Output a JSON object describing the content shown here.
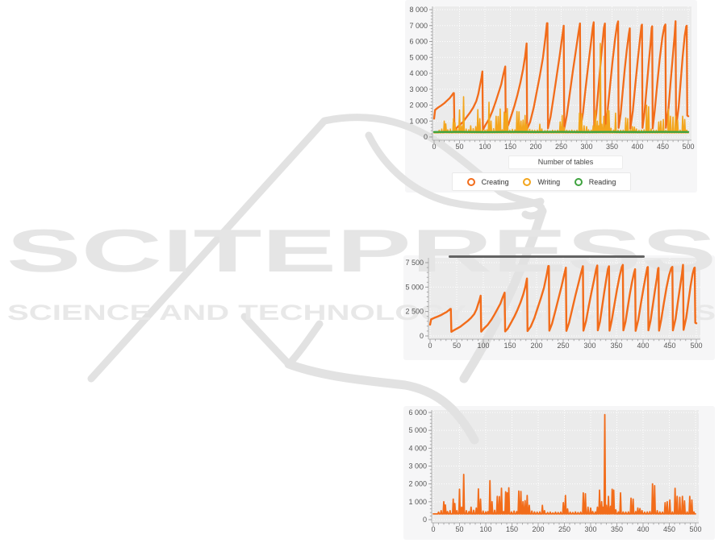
{
  "page": {
    "background": "#ffffff"
  },
  "watermark": {
    "big_text": "SCITEPRESS",
    "small_text": "SCIENCE AND TECHNOLOGY PUBLICATIONS",
    "big_text_color": "#e5e5e5",
    "small_text_color": "#e8e8e8",
    "logo_color": "#e2e2e2"
  },
  "divider_bar": {
    "color": "#636363"
  },
  "style": {
    "plot_bg": "#ebebeb",
    "card_bg": "#f6f6f7",
    "grid_color": "#ffffff",
    "axis_color": "#b3b3b3",
    "tick_color": "#999999",
    "tick_text_color": "#555555"
  },
  "series_data": {
    "creating": [
      [
        0,
        1150
      ],
      [
        2,
        1700
      ],
      [
        8,
        1850
      ],
      [
        14,
        1980
      ],
      [
        20,
        2120
      ],
      [
        26,
        2300
      ],
      [
        31,
        2450
      ],
      [
        35,
        2620
      ],
      [
        38,
        2760
      ],
      [
        39,
        2760
      ],
      [
        40,
        420
      ],
      [
        44,
        560
      ],
      [
        50,
        740
      ],
      [
        57,
        950
      ],
      [
        64,
        1250
      ],
      [
        71,
        1550
      ],
      [
        77,
        1850
      ],
      [
        83,
        2250
      ],
      [
        87,
        2700
      ],
      [
        90,
        3200
      ],
      [
        93,
        3700
      ],
      [
        95,
        4120
      ],
      [
        96,
        440
      ],
      [
        101,
        750
      ],
      [
        108,
        1120
      ],
      [
        115,
        1650
      ],
      [
        121,
        2200
      ],
      [
        127,
        2800
      ],
      [
        132,
        3300
      ],
      [
        136,
        3900
      ],
      [
        139,
        4300
      ],
      [
        140,
        4430
      ],
      [
        141,
        460
      ],
      [
        146,
        760
      ],
      [
        152,
        1350
      ],
      [
        158,
        1950
      ],
      [
        164,
        2650
      ],
      [
        170,
        3450
      ],
      [
        175,
        4250
      ],
      [
        179,
        5050
      ],
      [
        182,
        5880
      ],
      [
        183,
        500
      ],
      [
        189,
        950
      ],
      [
        196,
        1850
      ],
      [
        202,
        2850
      ],
      [
        208,
        3850
      ],
      [
        214,
        4950
      ],
      [
        219,
        6250
      ],
      [
        222,
        7150
      ],
      [
        223,
        7150
      ],
      [
        224,
        540
      ],
      [
        229,
        1250
      ],
      [
        235,
        2500
      ],
      [
        241,
        3800
      ],
      [
        247,
        5100
      ],
      [
        252,
        6300
      ],
      [
        255,
        6990
      ],
      [
        256,
        520
      ],
      [
        261,
        1350
      ],
      [
        267,
        2750
      ],
      [
        273,
        4150
      ],
      [
        279,
        5450
      ],
      [
        284,
        6550
      ],
      [
        287,
        7140
      ],
      [
        288,
        540
      ],
      [
        293,
        1550
      ],
      [
        298,
        3050
      ],
      [
        303,
        4450
      ],
      [
        308,
        5750
      ],
      [
        312,
        6850
      ],
      [
        314,
        7210
      ],
      [
        315,
        570
      ],
      [
        319,
        1450
      ],
      [
        323,
        2950
      ],
      [
        327,
        4450
      ],
      [
        331,
        5850
      ],
      [
        334,
        6850
      ],
      [
        336,
        7130
      ],
      [
        337,
        540
      ],
      [
        341,
        1550
      ],
      [
        346,
        3150
      ],
      [
        351,
        4750
      ],
      [
        356,
        6150
      ],
      [
        360,
        7050
      ],
      [
        362,
        7270
      ],
      [
        363,
        570
      ],
      [
        367,
        1450
      ],
      [
        371,
        2850
      ],
      [
        375,
        4250
      ],
      [
        379,
        5450
      ],
      [
        383,
        6450
      ],
      [
        385,
        6830
      ],
      [
        386,
        520
      ],
      [
        391,
        1650
      ],
      [
        396,
        3350
      ],
      [
        401,
        4950
      ],
      [
        405,
        6150
      ],
      [
        408,
        7000
      ],
      [
        409,
        7060
      ],
      [
        410,
        570
      ],
      [
        414,
        1550
      ],
      [
        418,
        3050
      ],
      [
        422,
        4550
      ],
      [
        426,
        5950
      ],
      [
        428,
        6860
      ],
      [
        429,
        6960
      ],
      [
        430,
        540
      ],
      [
        434,
        1650
      ],
      [
        439,
        3350
      ],
      [
        444,
        4950
      ],
      [
        449,
        6250
      ],
      [
        453,
        6950
      ],
      [
        455,
        7070
      ],
      [
        456,
        570
      ],
      [
        461,
        1750
      ],
      [
        465,
        3350
      ],
      [
        469,
        4850
      ],
      [
        473,
        6350
      ],
      [
        475,
        7280
      ],
      [
        476,
        620
      ],
      [
        481,
        1850
      ],
      [
        485,
        3450
      ],
      [
        489,
        5050
      ],
      [
        493,
        6350
      ],
      [
        496,
        6950
      ],
      [
        497,
        6990
      ],
      [
        498,
        1350
      ],
      [
        500,
        1300
      ]
    ],
    "writing_spikes": [
      [
        10,
        420
      ],
      [
        15,
        500
      ],
      [
        20,
        1000
      ],
      [
        23,
        820
      ],
      [
        27,
        450
      ],
      [
        32,
        500
      ],
      [
        38,
        1150
      ],
      [
        41,
        900
      ],
      [
        45,
        500
      ],
      [
        50,
        1700
      ],
      [
        54,
        700
      ],
      [
        58,
        2530
      ],
      [
        63,
        500
      ],
      [
        68,
        450
      ],
      [
        72,
        700
      ],
      [
        77,
        520
      ],
      [
        82,
        650
      ],
      [
        86,
        1720
      ],
      [
        90,
        1150
      ],
      [
        95,
        480
      ],
      [
        100,
        430
      ],
      [
        104,
        450
      ],
      [
        108,
        2180
      ],
      [
        112,
        1000
      ],
      [
        117,
        520
      ],
      [
        122,
        1300
      ],
      [
        126,
        1290
      ],
      [
        130,
        1760
      ],
      [
        134,
        450
      ],
      [
        138,
        1560
      ],
      [
        141,
        1500
      ],
      [
        144,
        1780
      ],
      [
        149,
        430
      ],
      [
        154,
        480
      ],
      [
        159,
        450
      ],
      [
        163,
        1600
      ],
      [
        167,
        1580
      ],
      [
        171,
        1000
      ],
      [
        175,
        1060
      ],
      [
        179,
        1350
      ],
      [
        183,
        800
      ],
      [
        188,
        480
      ],
      [
        193,
        430
      ],
      [
        198,
        420
      ],
      [
        203,
        430
      ],
      [
        208,
        800
      ],
      [
        212,
        500
      ],
      [
        218,
        400
      ],
      [
        223,
        420
      ],
      [
        228,
        380
      ],
      [
        233,
        420
      ],
      [
        238,
        400
      ],
      [
        243,
        420
      ],
      [
        248,
        950
      ],
      [
        252,
        1350
      ],
      [
        256,
        600
      ],
      [
        261,
        420
      ],
      [
        266,
        400
      ],
      [
        271,
        430
      ],
      [
        276,
        400
      ],
      [
        281,
        420
      ],
      [
        286,
        1500
      ],
      [
        290,
        1450
      ],
      [
        295,
        700
      ],
      [
        300,
        650
      ],
      [
        304,
        450
      ],
      [
        309,
        430
      ],
      [
        313,
        700
      ],
      [
        317,
        1650
      ],
      [
        321,
        1000
      ],
      [
        324,
        700
      ],
      [
        327,
        5880
      ],
      [
        330,
        800
      ],
      [
        334,
        1300
      ],
      [
        338,
        750
      ],
      [
        341,
        1700
      ],
      [
        344,
        1650
      ],
      [
        348,
        550
      ],
      [
        353,
        430
      ],
      [
        357,
        1500
      ],
      [
        362,
        430
      ],
      [
        367,
        420
      ],
      [
        372,
        430
      ],
      [
        377,
        1200
      ],
      [
        381,
        1150
      ],
      [
        386,
        450
      ],
      [
        390,
        650
      ],
      [
        394,
        620
      ],
      [
        398,
        500
      ],
      [
        403,
        420
      ],
      [
        408,
        430
      ],
      [
        413,
        450
      ],
      [
        418,
        2000
      ],
      [
        422,
        1900
      ],
      [
        427,
        500
      ],
      [
        432,
        430
      ],
      [
        437,
        420
      ],
      [
        442,
        950
      ],
      [
        446,
        1000
      ],
      [
        451,
        1100
      ],
      [
        456,
        430
      ],
      [
        461,
        1750
      ],
      [
        465,
        1300
      ],
      [
        470,
        1250
      ],
      [
        475,
        1300
      ],
      [
        479,
        1050
      ],
      [
        484,
        430
      ],
      [
        489,
        1300
      ],
      [
        493,
        1100
      ],
      [
        497,
        430
      ]
    ],
    "reading": [
      [
        0,
        310
      ],
      [
        50,
        318
      ],
      [
        100,
        308
      ],
      [
        150,
        320
      ],
      [
        200,
        312
      ],
      [
        250,
        318
      ],
      [
        300,
        310
      ],
      [
        350,
        318
      ],
      [
        400,
        310
      ],
      [
        450,
        318
      ],
      [
        500,
        314
      ]
    ]
  },
  "chart_data": [
    {
      "type": "line",
      "title": "",
      "xlabel": "Number of tables",
      "ylabel": "",
      "xlim": [
        0,
        500
      ],
      "ylim": [
        0,
        8000
      ],
      "grid": true,
      "xticks": [
        0,
        50,
        100,
        150,
        200,
        250,
        300,
        350,
        400,
        450,
        500
      ],
      "yticks": [
        {
          "value": 0,
          "label": "0"
        },
        {
          "value": 1000,
          "label": "1 000"
        },
        {
          "value": 2000,
          "label": "2 000"
        },
        {
          "value": 3000,
          "label": "3 000"
        },
        {
          "value": 4000,
          "label": "4 000"
        },
        {
          "value": 5000,
          "label": "5 000"
        },
        {
          "value": 6000,
          "label": "6 000"
        },
        {
          "value": 7000,
          "label": "7 000"
        },
        {
          "value": 8000,
          "label": "8 000"
        }
      ],
      "legend": {
        "position": "bottom",
        "entries": [
          {
            "label": "Creating",
            "color": "#f26c1a"
          },
          {
            "label": "Writing",
            "color": "#f3a51c"
          },
          {
            "label": "Reading",
            "color": "#3fa33f"
          }
        ]
      },
      "series": [
        {
          "name": "Creating",
          "color": "#f26c1a",
          "stroke_width": 2.3,
          "data": "creating"
        },
        {
          "name": "Writing",
          "color": "#f3a51c",
          "stroke_width": 1.6,
          "data": "writing_spikes",
          "baseline": 260
        },
        {
          "name": "Reading",
          "color": "#3fa33f",
          "stroke_width": 2.4,
          "data": "reading"
        }
      ]
    },
    {
      "type": "line",
      "title": "",
      "xlabel": "",
      "ylabel": "",
      "xlim": [
        0,
        500
      ],
      "ylim": [
        0,
        7500
      ],
      "grid": true,
      "xticks": [
        0,
        50,
        100,
        150,
        200,
        250,
        300,
        350,
        400,
        450,
        500
      ],
      "yticks": [
        {
          "value": 0,
          "label": "0"
        },
        {
          "value": 2500,
          "label": "2 500"
        },
        {
          "value": 5000,
          "label": "5 000"
        },
        {
          "value": 7500,
          "label": "7 500"
        }
      ],
      "series": [
        {
          "name": "Creating",
          "color": "#f26c1a",
          "stroke_width": 2.4,
          "data": "creating"
        }
      ]
    },
    {
      "type": "line",
      "title": "",
      "xlabel": "",
      "ylabel": "",
      "xlim": [
        0,
        500
      ],
      "ylim": [
        0,
        6000
      ],
      "grid": true,
      "xticks": [
        0,
        50,
        100,
        150,
        200,
        250,
        300,
        350,
        400,
        450,
        500
      ],
      "yticks": [
        {
          "value": 0,
          "label": "0"
        },
        {
          "value": 1000,
          "label": "1 000"
        },
        {
          "value": 2000,
          "label": "2 000"
        },
        {
          "value": 3000,
          "label": "3 000"
        },
        {
          "value": 4000,
          "label": "4 000"
        },
        {
          "value": 5000,
          "label": "5 000"
        },
        {
          "value": 6000,
          "label": "6 000"
        }
      ],
      "series": [
        {
          "name": "Writing",
          "color": "#f26c1a",
          "stroke_width": 1.8,
          "data": "writing_spikes",
          "baseline": 320
        }
      ]
    }
  ]
}
